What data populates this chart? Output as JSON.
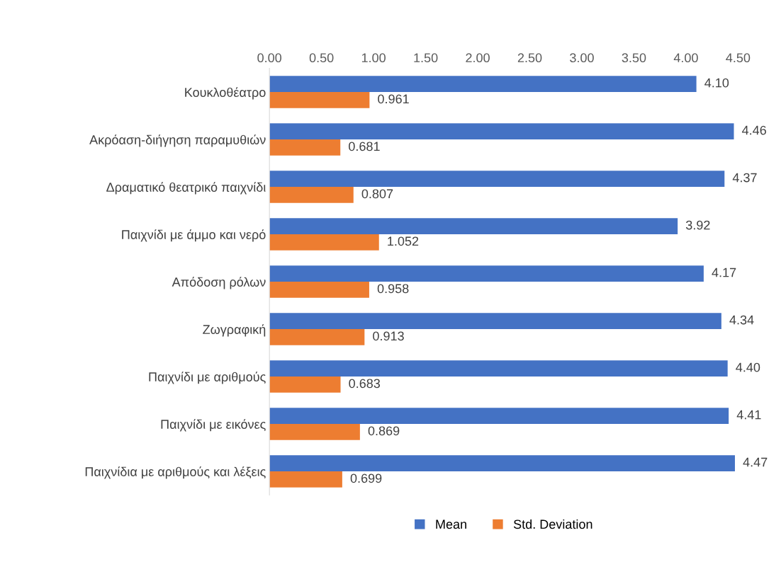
{
  "chart_data": {
    "type": "bar",
    "orientation": "horizontal",
    "categories": [
      "Κουκλοθέατρο",
      "Ακρόαση-διήγηση παραμυθιών",
      "Δραματικό θεατρικό παιχνίδι",
      "Παιχνίδι με άμμο και νερό",
      "Απόδοση ρόλων",
      "Ζωγραφική",
      "Παιχνίδι με αριθμούς",
      "Παιχνίδι με εικόνες",
      "Παιχνίδια με αριθμούς και λέξεις"
    ],
    "series": [
      {
        "name": "Mean",
        "color": "#4472c4",
        "values": [
          4.1,
          4.46,
          4.37,
          3.92,
          4.17,
          4.34,
          4.4,
          4.41,
          4.47
        ],
        "value_labels": [
          "4.10",
          "4.46",
          "4.37",
          "3.92",
          "4.17",
          "4.34",
          "4.40",
          "4.41",
          "4.47"
        ]
      },
      {
        "name": "Std. Deviation",
        "color": "#ed7d31",
        "values": [
          0.961,
          0.681,
          0.807,
          1.052,
          0.958,
          0.913,
          0.683,
          0.869,
          0.699
        ],
        "value_labels": [
          "0.961",
          "0.681",
          "0.807",
          "1.052",
          "0.958",
          "0.913",
          "0.683",
          "0.869",
          "0.699"
        ]
      }
    ],
    "xlim": [
      0,
      4.5
    ],
    "xticks": [
      {
        "value": 0,
        "label": "0.00"
      },
      {
        "value": 0.5,
        "label": "0.50"
      },
      {
        "value": 1,
        "label": "1.00"
      },
      {
        "value": 1.5,
        "label": "1.50"
      },
      {
        "value": 2,
        "label": "2.00"
      },
      {
        "value": 2.5,
        "label": "2.50"
      },
      {
        "value": 3,
        "label": "3.00"
      },
      {
        "value": 3.5,
        "label": "3.50"
      },
      {
        "value": 4,
        "label": "4.00"
      },
      {
        "value": 4.5,
        "label": "4.50"
      }
    ],
    "legend": "bottom",
    "grid": false
  }
}
